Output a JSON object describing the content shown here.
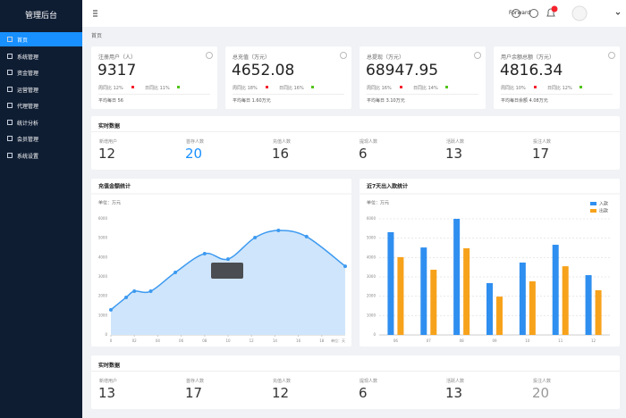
{
  "sidebar": {
    "title": "管理后台",
    "menu": [
      "首页",
      "系统管理",
      "资金管理",
      "运营管理",
      "代理管理",
      "统计分析",
      "会员管理",
      "系统设置"
    ]
  },
  "header": {
    "breadcrumb": "首页",
    "user": "Forward"
  },
  "stats": [
    {
      "title": "注册用户（人）",
      "value": "9317",
      "week": "周同比 12%",
      "day": "日同比 11%",
      "footer": "平均每日 56"
    },
    {
      "title": "总充值（万元）",
      "value": "4652.08",
      "week": "周同比 18%",
      "day": "日同比 16%",
      "footer": "平均每日 1.60万元"
    },
    {
      "title": "总提现（万元）",
      "value": "68947.95",
      "week": "周同比 16%",
      "day": "日同比 14%",
      "footer": "平均每日 3.10万元"
    },
    {
      "title": "用户余额总额（万元）",
      "value": "4816.34",
      "week": "周同比 10%",
      "day": "日同比 12%",
      "footer": "平均每日余额 4.08万元"
    }
  ],
  "panels": [
    {
      "title": "实时数据",
      "items": [
        {
          "label": "新增用户",
          "value": "12"
        },
        {
          "label": "首存人数",
          "value": "20",
          "color": "#1890ff"
        },
        {
          "label": "充值人数",
          "value": "16"
        },
        {
          "label": "提现人数",
          "value": "6"
        },
        {
          "label": "活跃人数",
          "value": "13"
        },
        {
          "label": "投注人数",
          "value": "17"
        }
      ]
    },
    {
      "title": "实时数据",
      "items": [
        {
          "label": "新增用户",
          "value": "13"
        },
        {
          "label": "首存人数",
          "value": "17"
        },
        {
          "label": "充值人数",
          "value": "12"
        },
        {
          "label": "提现人数",
          "value": "6"
        },
        {
          "label": "活跃人数",
          "value": "13"
        },
        {
          "label": "投注人数",
          "value": "20",
          "color": "#999999"
        }
      ]
    }
  ],
  "chart_data": [
    {
      "type": "area",
      "title": "充值金额统计",
      "y_label": "单位：万元",
      "x_label": "单位：天",
      "x": [
        0,
        1.3,
        2,
        3.4,
        5.5,
        8,
        10,
        12.3,
        14.3,
        16.7,
        20
      ],
      "values": [
        1300,
        1940,
        2260,
        2260,
        3230,
        4200,
        3920,
        5030,
        5400,
        5080,
        3550
      ],
      "color": "#3d9af0",
      "xlim": [
        0,
        20
      ],
      "ylim": [
        0,
        6000
      ],
      "xticks": [
        0,
        {
          "value": 2,
          "label": "02"
        },
        {
          "value": 4,
          "label": "04"
        },
        {
          "value": 6,
          "label": "06"
        },
        {
          "value": 8,
          "label": "08"
        },
        10,
        12,
        14,
        16,
        18
      ],
      "yticks": [
        0,
        1000,
        2000,
        3000,
        4000,
        5000,
        6000
      ],
      "grid": false
    },
    {
      "type": "bar",
      "title": "近7天出入款统计",
      "y_label": "单位：万元",
      "categories": [
        "06",
        "07",
        "08",
        "09",
        "10",
        "11",
        "12"
      ],
      "series": [
        {
          "name": "入款",
          "color": "#2f8ff0",
          "values": [
            5310,
            4520,
            6000,
            2680,
            3740,
            4660,
            3090
          ]
        },
        {
          "name": "出款",
          "color": "#f7a21b",
          "values": [
            4020,
            3370,
            4480,
            1980,
            2770,
            3550,
            2310
          ]
        }
      ],
      "ylim": [
        0,
        6000
      ],
      "yticks": [
        0,
        1000,
        2000,
        3000,
        4000,
        5000,
        6000
      ],
      "grid": true,
      "legend": "top-right"
    }
  ]
}
